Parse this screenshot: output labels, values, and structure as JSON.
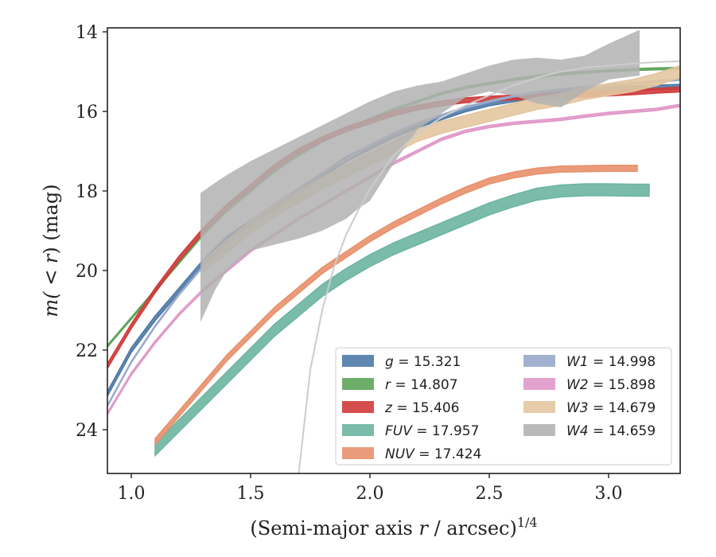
{
  "chart_data": {
    "type": "line",
    "title": "",
    "xlabel_main": "(Semi-major axis ",
    "xlabel_r": "r",
    "xlabel_tail": " / arcsec)",
    "xlabel_sup": "1/4",
    "ylabel_pre": "m(",
    "ylabel_mid": " < ",
    "ylabel_r": "r",
    "ylabel_post": ") (mag)",
    "xlim": [
      0.9,
      3.3
    ],
    "ylim": [
      25.1,
      13.9
    ],
    "y_inverted": true,
    "xticks": [
      1.0,
      1.5,
      2.0,
      2.5,
      3.0
    ],
    "xtick_labels": [
      "1.0",
      "1.5",
      "2.0",
      "2.5",
      "3.0"
    ],
    "yticks": [
      14,
      16,
      18,
      20,
      22,
      24
    ],
    "ytick_labels": [
      "14",
      "16",
      "18",
      "20",
      "22",
      "24"
    ],
    "grid": false,
    "legend_position": "lower right",
    "series": [
      {
        "name": "g = 15.321",
        "label_var": "g",
        "label_val": "15.321",
        "color": "#4e7aa7",
        "band_width": 0.12,
        "x": [
          0.9,
          1.0,
          1.1,
          1.2,
          1.3,
          1.4,
          1.5,
          1.6,
          1.7,
          1.8,
          1.9,
          2.0,
          2.1,
          2.2,
          2.3,
          2.4,
          2.5,
          2.6,
          2.7,
          2.8,
          2.9,
          3.0,
          3.1,
          3.2,
          3.3
        ],
        "y": [
          23.1,
          22.0,
          21.2,
          20.5,
          19.8,
          19.2,
          18.8,
          18.4,
          18.0,
          17.6,
          17.2,
          16.9,
          16.6,
          16.35,
          16.15,
          15.95,
          15.8,
          15.7,
          15.6,
          15.55,
          15.5,
          15.45,
          15.42,
          15.4,
          15.38
        ]
      },
      {
        "name": "r = 14.807",
        "label_var": "r",
        "label_val": "14.807",
        "color": "#5fa55a",
        "band_width": 0.05,
        "x": [
          0.9,
          1.0,
          1.1,
          1.2,
          1.3,
          1.4,
          1.5,
          1.6,
          1.7,
          1.8,
          1.9,
          2.0,
          2.1,
          2.2,
          2.3,
          2.4,
          2.5,
          2.6,
          2.7,
          2.8,
          2.9,
          3.0,
          3.1,
          3.2,
          3.3
        ],
        "y": [
          21.9,
          21.2,
          20.5,
          19.8,
          19.1,
          18.5,
          18.0,
          17.5,
          17.1,
          16.75,
          16.45,
          16.2,
          15.95,
          15.75,
          15.55,
          15.4,
          15.3,
          15.2,
          15.12,
          15.06,
          15.02,
          14.98,
          14.95,
          14.93,
          14.92
        ]
      },
      {
        "name": "z = 15.406",
        "label_var": "z",
        "label_val": "15.406",
        "color": "#d03a3a",
        "band_width": 0.12,
        "x": [
          0.9,
          1.0,
          1.1,
          1.2,
          1.3,
          1.4,
          1.5,
          1.6,
          1.7,
          1.8,
          1.9,
          2.0,
          2.1,
          2.2,
          2.3,
          2.4,
          2.5,
          2.6,
          2.7,
          2.8,
          2.9,
          3.0,
          3.1,
          3.2,
          3.3
        ],
        "y": [
          22.4,
          21.4,
          20.5,
          19.7,
          19.0,
          18.4,
          17.9,
          17.4,
          17.0,
          16.7,
          16.45,
          16.25,
          16.05,
          15.9,
          15.8,
          15.72,
          15.68,
          15.65,
          15.62,
          15.6,
          15.58,
          15.55,
          15.52,
          15.48,
          15.45
        ]
      },
      {
        "name": "FUV = 17.957",
        "label_var": "FUV",
        "label_val": "17.957",
        "color": "#6bb5a0",
        "band_width": 0.3,
        "x": [
          1.1,
          1.2,
          1.3,
          1.4,
          1.5,
          1.6,
          1.7,
          1.8,
          1.9,
          2.0,
          2.1,
          2.2,
          2.3,
          2.4,
          2.5,
          2.6,
          2.7,
          2.8,
          2.9,
          3.0,
          3.1,
          3.17
        ],
        "y": [
          24.5,
          23.9,
          23.3,
          22.7,
          22.1,
          21.5,
          21.0,
          20.5,
          20.1,
          19.75,
          19.45,
          19.2,
          18.95,
          18.7,
          18.45,
          18.25,
          18.08,
          18.0,
          17.97,
          17.97,
          17.98,
          17.98
        ]
      },
      {
        "name": "NUV = 17.424",
        "label_var": "NUV",
        "label_val": "17.424",
        "color": "#e8906b",
        "band_width": 0.15,
        "x": [
          1.1,
          1.2,
          1.3,
          1.4,
          1.5,
          1.6,
          1.7,
          1.8,
          1.9,
          2.0,
          2.1,
          2.2,
          2.3,
          2.4,
          2.5,
          2.6,
          2.7,
          2.8,
          2.9,
          3.0,
          3.12
        ],
        "y": [
          24.3,
          23.6,
          22.9,
          22.2,
          21.6,
          21.0,
          20.5,
          20.0,
          19.6,
          19.2,
          18.85,
          18.55,
          18.25,
          17.98,
          17.75,
          17.6,
          17.5,
          17.45,
          17.44,
          17.43,
          17.43
        ]
      },
      {
        "name": "W1 = 14.998",
        "label_var": "W1",
        "label_val": "14.998",
        "color": "#99a9cc",
        "band_width": 0.04,
        "x": [
          0.9,
          1.0,
          1.1,
          1.2,
          1.3,
          1.4,
          1.5,
          1.6,
          1.7,
          1.8,
          1.9,
          2.0,
          2.1,
          2.2,
          2.3,
          2.4,
          2.5,
          2.6,
          2.7,
          2.8,
          2.9,
          3.0,
          3.1,
          3.2,
          3.3
        ],
        "y": [
          23.4,
          22.3,
          21.4,
          20.6,
          19.9,
          19.3,
          18.8,
          18.35,
          17.95,
          17.55,
          17.2,
          16.85,
          16.55,
          16.3,
          16.1,
          15.9,
          15.75,
          15.62,
          15.52,
          15.45,
          15.4,
          15.35,
          15.3,
          15.25,
          15.2
        ]
      },
      {
        "name": "W2 = 15.898",
        "label_var": "W2",
        "label_val": "15.898",
        "color": "#e098c9",
        "band_width": 0.06,
        "x": [
          0.9,
          1.0,
          1.1,
          1.2,
          1.3,
          1.4,
          1.5,
          1.6,
          1.7,
          1.8,
          1.9,
          2.0,
          2.1,
          2.2,
          2.3,
          2.4,
          2.5,
          2.6,
          2.7,
          2.8,
          2.9,
          3.0,
          3.1,
          3.2,
          3.3
        ],
        "y": [
          23.6,
          22.6,
          21.8,
          21.1,
          20.5,
          20.0,
          19.5,
          19.1,
          18.7,
          18.35,
          18.0,
          17.65,
          17.3,
          17.0,
          16.7,
          16.5,
          16.38,
          16.3,
          16.25,
          16.2,
          16.12,
          16.05,
          16.0,
          15.95,
          15.85
        ]
      },
      {
        "name": "W3 = 14.679",
        "label_var": "W3",
        "label_val": "14.679",
        "color": "#e3c69f",
        "band_width": 0.3,
        "x": [
          1.3,
          1.4,
          1.5,
          1.6,
          1.7,
          1.8,
          1.9,
          2.0,
          2.1,
          2.2,
          2.3,
          2.4,
          2.5,
          2.6,
          2.7,
          2.8,
          2.9,
          3.0,
          3.1,
          3.2,
          3.3
        ],
        "y": [
          19.9,
          19.4,
          18.9,
          18.5,
          18.15,
          17.8,
          17.5,
          17.2,
          16.9,
          16.6,
          16.4,
          16.25,
          16.1,
          15.95,
          15.8,
          15.7,
          15.55,
          15.45,
          15.35,
          15.2,
          15.0
        ]
      },
      {
        "name": "W4 = 14.659",
        "label_var": "W4",
        "label_val": "14.659",
        "color": "#b2b2b2",
        "band_x": [
          1.29,
          1.35,
          1.4,
          1.5,
          1.6,
          1.7,
          1.8,
          1.9,
          1.95,
          2.0,
          2.1,
          2.2,
          2.3,
          2.4,
          2.5,
          2.6,
          2.7,
          2.8,
          2.9,
          3.0,
          3.13
        ],
        "band_upper": [
          18.05,
          17.8,
          17.6,
          17.25,
          16.95,
          16.65,
          16.35,
          16.05,
          15.9,
          15.75,
          15.5,
          15.35,
          15.25,
          15.05,
          14.85,
          14.7,
          14.65,
          14.7,
          14.6,
          14.3,
          13.95
        ],
        "band_lower": [
          21.3,
          20.5,
          20.0,
          19.5,
          19.35,
          19.2,
          19.0,
          18.7,
          18.45,
          18.25,
          17.3,
          16.45,
          16.05,
          15.65,
          15.5,
          15.6,
          15.8,
          15.9,
          15.5,
          15.2,
          15.1
        ],
        "curve_x": [
          1.7,
          1.75,
          1.8,
          1.85,
          1.9,
          1.95,
          2.0,
          2.1,
          2.2,
          2.3,
          2.4,
          2.5,
          2.6,
          2.7,
          2.8,
          2.9,
          3.0,
          3.1,
          3.2,
          3.3
        ],
        "curve_y": [
          25.2,
          22.5,
          21.0,
          19.9,
          19.1,
          18.5,
          17.95,
          17.1,
          16.55,
          16.15,
          15.85,
          15.6,
          15.35,
          15.15,
          15.0,
          14.9,
          14.85,
          14.8,
          14.76,
          14.74
        ]
      }
    ]
  }
}
